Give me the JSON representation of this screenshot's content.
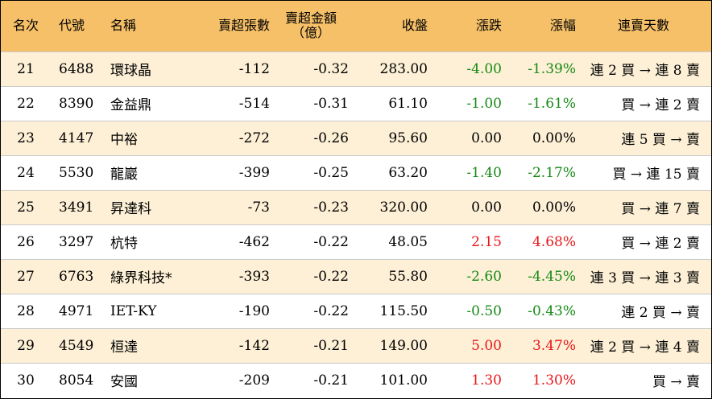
{
  "headers": {
    "rank": "名次",
    "code": "代號",
    "name": "名稱",
    "net_sell_lots": "賣超張數",
    "net_sell_amount": "賣超金額",
    "net_sell_amount_unit": "（億）",
    "close": "收盤",
    "change": "漲跌",
    "change_pct": "漲幅",
    "streak": "連賣天數"
  },
  "rows": [
    {
      "rank": "21",
      "code": "6488",
      "name": "環球晶",
      "lots": "-112",
      "amount": "-0.32",
      "close": "283.00",
      "change": "-4.00",
      "pct": "-1.39%",
      "trend": "down",
      "streak": "連 2 買 → 連 8 賣"
    },
    {
      "rank": "22",
      "code": "8390",
      "name": "金益鼎",
      "lots": "-514",
      "amount": "-0.31",
      "close": "61.10",
      "change": "-1.00",
      "pct": "-1.61%",
      "trend": "down",
      "streak": "買 → 連 2 賣"
    },
    {
      "rank": "23",
      "code": "4147",
      "name": "中裕",
      "lots": "-272",
      "amount": "-0.26",
      "close": "95.60",
      "change": "0.00",
      "pct": "0.00%",
      "trend": "flat",
      "streak": "連 5 買 → 賣"
    },
    {
      "rank": "24",
      "code": "5530",
      "name": "龍巖",
      "lots": "-399",
      "amount": "-0.25",
      "close": "63.20",
      "change": "-1.40",
      "pct": "-2.17%",
      "trend": "down",
      "streak": "買 → 連 15 賣"
    },
    {
      "rank": "25",
      "code": "3491",
      "name": "昇達科",
      "lots": "-73",
      "amount": "-0.23",
      "close": "320.00",
      "change": "0.00",
      "pct": "0.00%",
      "trend": "flat",
      "streak": "買 → 連 7 賣"
    },
    {
      "rank": "26",
      "code": "3297",
      "name": "杭特",
      "lots": "-462",
      "amount": "-0.22",
      "close": "48.05",
      "change": "2.15",
      "pct": "4.68%",
      "trend": "up",
      "streak": "買 → 連 2 賣"
    },
    {
      "rank": "27",
      "code": "6763",
      "name": "綠界科技*",
      "lots": "-393",
      "amount": "-0.22",
      "close": "55.80",
      "change": "-2.60",
      "pct": "-4.45%",
      "trend": "down",
      "streak": "連 3 買 → 連 3 賣"
    },
    {
      "rank": "28",
      "code": "4971",
      "name": "IET-KY",
      "lots": "-190",
      "amount": "-0.22",
      "close": "115.50",
      "change": "-0.50",
      "pct": "-0.43%",
      "trend": "down",
      "streak": "連 2 買 → 賣"
    },
    {
      "rank": "29",
      "code": "4549",
      "name": "桓達",
      "lots": "-142",
      "amount": "-0.21",
      "close": "149.00",
      "change": "5.00",
      "pct": "3.47%",
      "trend": "up",
      "streak": "連 2 買 → 連 4 賣"
    },
    {
      "rank": "30",
      "code": "8054",
      "name": "安國",
      "lots": "-209",
      "amount": "-0.21",
      "close": "101.00",
      "change": "1.30",
      "pct": "1.30%",
      "trend": "up",
      "streak": "買 → 賣"
    }
  ]
}
